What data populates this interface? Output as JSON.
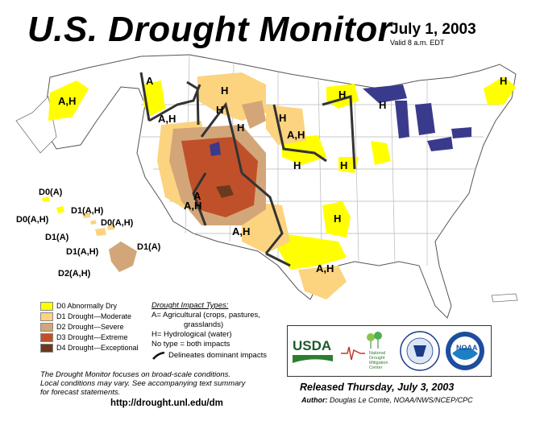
{
  "header": {
    "title": "U.S. Drought Monitor",
    "date": "July 1, 2003",
    "valid": "Valid 8 a.m. EDT"
  },
  "colors": {
    "D0": "#ffff00",
    "D1": "#fcd37f",
    "D2": "#d2a679",
    "D3": "#c0502a",
    "D4": "#6b3a1c",
    "water": "#3a3a8c",
    "boundary": "#333333",
    "states": "#b8b8b8"
  },
  "legend": {
    "items": [
      {
        "code": "D0",
        "label": "D0 Abnormally Dry"
      },
      {
        "code": "D1",
        "label": "D1 Drought—Moderate"
      },
      {
        "code": "D2",
        "label": "D2 Drought—Severe"
      },
      {
        "code": "D3",
        "label": "D3 Drought—Extreme"
      },
      {
        "code": "D4",
        "label": "D4 Drought—Exceptional"
      }
    ]
  },
  "impact": {
    "heading": "Drought Impact Types:",
    "lines": [
      "A= Agricultural (crops, pastures,",
      "grasslands)",
      "H= Hydrological (water)",
      "No type = both impacts"
    ],
    "delineates": "Delineates dominant impacts"
  },
  "map_labels": [
    "A,H",
    "A",
    "A,H",
    "H",
    "H",
    "H",
    "A,H",
    "H",
    "H",
    "H",
    "H",
    "H",
    "A",
    "A,H",
    "A,H",
    "H",
    "A,H",
    "H"
  ],
  "hawaii_labels": [
    "D0(A)",
    "D0(A,H)",
    "D1(A,H)",
    "D0(A,H)",
    "D1(A)",
    "D1(A,H)",
    "D1(A)",
    "D2(A,H)"
  ],
  "note": {
    "lines": [
      "The Drought Monitor focuses on broad-scale conditions.",
      "Local conditions may vary. See accompanying text summary",
      "for forecast statements."
    ]
  },
  "url": "http://drought.unl.edu/dm",
  "logos": {
    "usda": "USDA",
    "ndmc_lines": [
      "National",
      "Drought",
      "Mitigation",
      "Center"
    ],
    "noaa": "NOAA"
  },
  "released": "Released Thursday, July 3, 2003",
  "author": {
    "label": "Author:",
    "name": "Douglas Le Comte, NOAA/NWS/NCEP/CPC"
  }
}
